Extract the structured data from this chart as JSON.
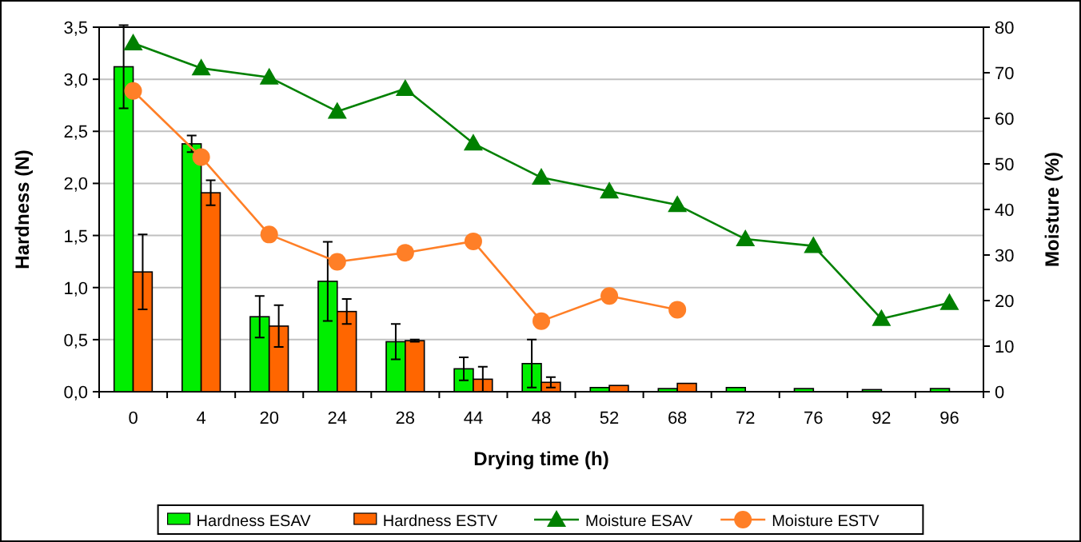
{
  "chart_data": {
    "type": "bar",
    "xlabel": "Drying time (h)",
    "ylabel": "Hardness (N)",
    "y2label": "Moisture (%)",
    "categories": [
      "0",
      "4",
      "20",
      "24",
      "28",
      "44",
      "48",
      "52",
      "68",
      "72",
      "76",
      "92",
      "96"
    ],
    "series": [
      {
        "name": "Hardness ESAV",
        "color": "#00ee00",
        "values": [
          3.12,
          2.38,
          0.72,
          1.06,
          0.48,
          0.22,
          0.27,
          0.04,
          0.03,
          0.04,
          0.03,
          0.02,
          0.03
        ],
        "errors": [
          0.4,
          0.08,
          0.2,
          0.38,
          0.17,
          0.11,
          0.23,
          null,
          null,
          null,
          null,
          null,
          null
        ]
      },
      {
        "name": "Hardness ESTV",
        "color": "#ff6600",
        "values": [
          1.15,
          1.91,
          0.63,
          0.77,
          0.49,
          0.12,
          0.09,
          0.06,
          0.08,
          null,
          null,
          null,
          null
        ],
        "errors": [
          0.36,
          0.12,
          0.2,
          0.12,
          0.01,
          0.12,
          0.05,
          null,
          null,
          null,
          null,
          null,
          null
        ]
      },
      {
        "name": "Moisture ESAV",
        "type": "line",
        "axis": "y2",
        "color": "#008000",
        "marker": "triangle",
        "values": [
          76.5,
          71,
          69,
          61.5,
          66.5,
          54.5,
          47,
          44,
          41,
          33.5,
          32,
          16,
          19.5
        ]
      },
      {
        "name": "Moisture ESTV",
        "type": "line",
        "axis": "y2",
        "color": "#ff7f27",
        "marker": "circle",
        "values": [
          66,
          51.5,
          34.5,
          28.5,
          30.5,
          33,
          15.5,
          21,
          18,
          null,
          null,
          null,
          null
        ]
      }
    ],
    "ylim": [
      0,
      3.5
    ],
    "yticks": [
      {
        "value": 0,
        "label": "0,0"
      },
      {
        "value": 0.5,
        "label": "0,5"
      },
      {
        "value": 1,
        "label": "1,0"
      },
      {
        "value": 1.5,
        "label": "1,5"
      },
      {
        "value": 2,
        "label": "2,0"
      },
      {
        "value": 2.5,
        "label": "2,5"
      },
      {
        "value": 3,
        "label": "3,0"
      },
      {
        "value": 3.5,
        "label": "3,5"
      }
    ],
    "y2lim": [
      0,
      80
    ],
    "y2ticks": [
      0,
      10,
      20,
      30,
      40,
      50,
      60,
      70,
      80
    ],
    "grid": "y",
    "legend": "bottom"
  }
}
